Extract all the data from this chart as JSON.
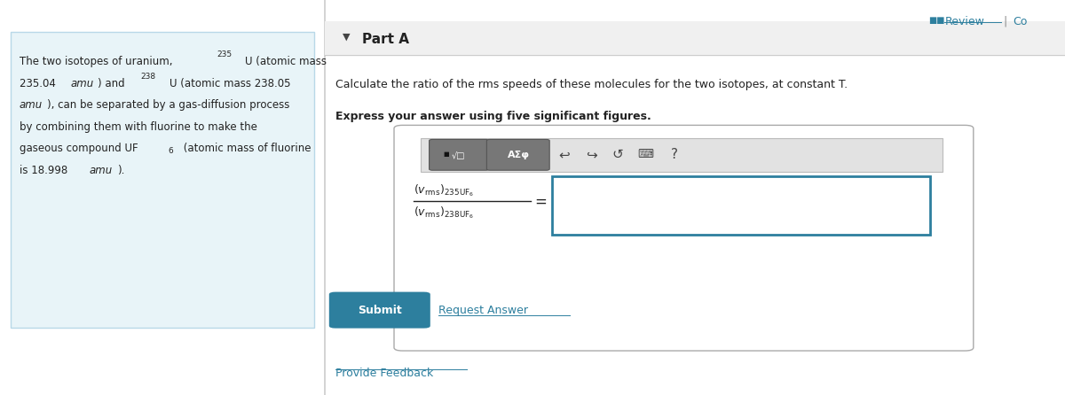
{
  "bg_color": "#ffffff",
  "left_panel_bg": "#e8f4f8",
  "left_panel_border": "#b8d8e8",
  "teal_color": "#2d7f9e",
  "submit_btn_color": "#2d7f9e",
  "part_a_label": "Part A",
  "question_text": "Calculate the ratio of the rms speeds of these molecules for the two isotopes, at constant T.",
  "bold_text": "Express your answer using five significant figures."
}
